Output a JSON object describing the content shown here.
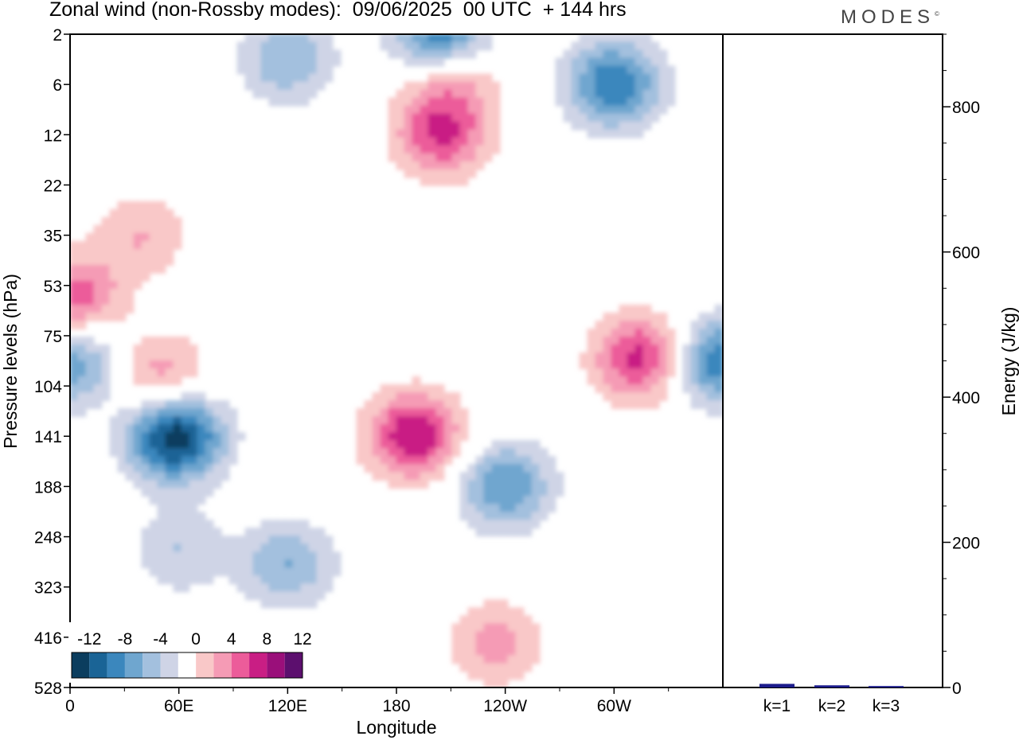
{
  "title": "Zonal wind (non-Rossby modes):  09/06/2025  00 UTC  + 144 hrs",
  "brand": "MODES",
  "colors": {
    "neg": [
      "#0b3d5e",
      "#1a6496",
      "#3b87bd",
      "#6fa6cf",
      "#a3c0de",
      "#cfd4e6"
    ],
    "pos": [
      "#f9c8c8",
      "#f59bb5",
      "#ec5c9a",
      "#c91e84",
      "#9a0f7a",
      "#5c0f6e"
    ],
    "bar": "#1c1c8c"
  },
  "chart_data": [
    {
      "type": "heatmap",
      "title": "Zonal wind (non-Rossby modes):  09/06/2025  00 UTC  + 144 hrs",
      "xlabel": "Longitude",
      "ylabel": "Pressure levels (hPa)",
      "x_ticks": [
        "0",
        "60E",
        "120E",
        "180",
        "120W",
        "60W"
      ],
      "y_ticks": [
        "2",
        "6",
        "12",
        "22",
        "35",
        "53",
        "75",
        "104",
        "141",
        "188",
        "248",
        "323",
        "416",
        "528"
      ],
      "colorbar": {
        "labels": [
          "-12",
          "-8",
          "-4",
          "0",
          "4",
          "8",
          "12"
        ],
        "levels": [
          -14,
          -12,
          -10,
          -8,
          -6,
          -4,
          -2,
          2,
          4,
          6,
          8,
          10,
          12,
          14
        ]
      },
      "features": [
        {
          "lon": 58,
          "level": 141,
          "value": -14
        },
        {
          "lon": 205,
          "level": 2,
          "value": -12
        },
        {
          "lon": 190,
          "level": 141,
          "value": 10
        },
        {
          "lon": 205,
          "level": 12,
          "value": 8
        },
        {
          "lon": 315,
          "level": 88,
          "value": 9
        },
        {
          "lon": 358,
          "level": 90,
          "value": -10
        },
        {
          "lon": 2,
          "level": 60,
          "value": 8
        },
        {
          "lon": 2,
          "level": 90,
          "value": -8
        },
        {
          "lon": 50,
          "level": 100,
          "value": 6
        },
        {
          "lon": 240,
          "level": 188,
          "value": -8
        },
        {
          "lon": 120,
          "level": 290,
          "value": -6
        },
        {
          "lon": 60,
          "level": 270,
          "value": -4
        },
        {
          "lon": 235,
          "level": 430,
          "value": 5
        },
        {
          "lon": 300,
          "level": 6,
          "value": -10
        },
        {
          "lon": 120,
          "level": 4,
          "value": -6
        },
        {
          "lon": 210,
          "level": 5,
          "value": 6
        },
        {
          "lon": 40,
          "level": 35,
          "value": 4
        }
      ]
    },
    {
      "type": "bar",
      "categories": [
        "k=1",
        "k=2",
        "k=3"
      ],
      "values": [
        5,
        3,
        2
      ],
      "ylabel": "Energy (J/kg)",
      "ylim": [
        0,
        900
      ],
      "y_ticks": [
        0,
        200,
        400,
        600,
        800
      ]
    }
  ]
}
